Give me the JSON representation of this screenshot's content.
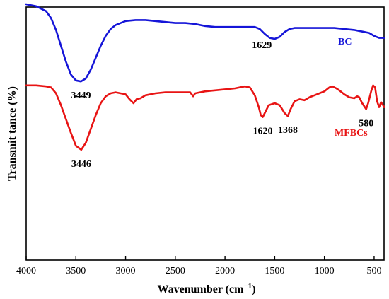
{
  "chart_data": {
    "type": "line",
    "xlabel": "Wavenumber (cm",
    "xlabel_sup": "−1",
    "xlabel_close": ")",
    "ylabel": "Transmit tance (%)",
    "xlim": [
      4000,
      400
    ],
    "x_reversed": true,
    "x_ticks": [
      "4000",
      "3500",
      "3000",
      "2500",
      "2000",
      "1500",
      "1000",
      "500"
    ],
    "y_ticks_shown": false,
    "grid": false,
    "series": [
      {
        "name": "BC",
        "color": "#1515d8",
        "points": [
          [
            4000,
            90
          ],
          [
            3900,
            88
          ],
          [
            3800,
            83
          ],
          [
            3750,
            76
          ],
          [
            3700,
            64
          ],
          [
            3650,
            48
          ],
          [
            3600,
            32
          ],
          [
            3550,
            19
          ],
          [
            3500,
            13
          ],
          [
            3449,
            12
          ],
          [
            3400,
            15
          ],
          [
            3350,
            24
          ],
          [
            3300,
            36
          ],
          [
            3250,
            48
          ],
          [
            3200,
            58
          ],
          [
            3150,
            65
          ],
          [
            3100,
            69
          ],
          [
            3000,
            73
          ],
          [
            2900,
            74
          ],
          [
            2800,
            74
          ],
          [
            2700,
            73
          ],
          [
            2600,
            72
          ],
          [
            2500,
            71
          ],
          [
            2400,
            71
          ],
          [
            2300,
            70
          ],
          [
            2200,
            68
          ],
          [
            2100,
            67
          ],
          [
            2000,
            67
          ],
          [
            1900,
            67
          ],
          [
            1800,
            67
          ],
          [
            1700,
            67
          ],
          [
            1650,
            65
          ],
          [
            1600,
            60
          ],
          [
            1550,
            56
          ],
          [
            1500,
            55
          ],
          [
            1450,
            57
          ],
          [
            1400,
            62
          ],
          [
            1350,
            65
          ],
          [
            1300,
            66
          ],
          [
            1200,
            66
          ],
          [
            1100,
            66
          ],
          [
            1000,
            66
          ],
          [
            900,
            66
          ],
          [
            800,
            65
          ],
          [
            700,
            64
          ],
          [
            650,
            63
          ],
          [
            600,
            62
          ],
          [
            550,
            61
          ],
          [
            500,
            58
          ],
          [
            450,
            56
          ],
          [
            400,
            56
          ]
        ]
      },
      {
        "name": "MFBCs",
        "color": "#e81414",
        "points": [
          [
            4000,
            8
          ],
          [
            3900,
            8
          ],
          [
            3800,
            7
          ],
          [
            3750,
            6
          ],
          [
            3700,
            0
          ],
          [
            3650,
            -12
          ],
          [
            3600,
            -26
          ],
          [
            3550,
            -40
          ],
          [
            3500,
            -53
          ],
          [
            3446,
            -57
          ],
          [
            3400,
            -50
          ],
          [
            3350,
            -36
          ],
          [
            3300,
            -22
          ],
          [
            3250,
            -10
          ],
          [
            3200,
            -3
          ],
          [
            3150,
            0
          ],
          [
            3100,
            1
          ],
          [
            3050,
            0
          ],
          [
            3000,
            -1
          ],
          [
            2960,
            -6
          ],
          [
            2920,
            -10
          ],
          [
            2890,
            -6
          ],
          [
            2850,
            -5
          ],
          [
            2800,
            -2
          ],
          [
            2700,
            0
          ],
          [
            2600,
            1
          ],
          [
            2500,
            1
          ],
          [
            2400,
            1
          ],
          [
            2350,
            1
          ],
          [
            2320,
            -3
          ],
          [
            2300,
            0
          ],
          [
            2200,
            2
          ],
          [
            2100,
            3
          ],
          [
            2000,
            4
          ],
          [
            1900,
            5
          ],
          [
            1800,
            7
          ],
          [
            1750,
            6
          ],
          [
            1700,
            -2
          ],
          [
            1660,
            -14
          ],
          [
            1640,
            -22
          ],
          [
            1620,
            -24
          ],
          [
            1600,
            -20
          ],
          [
            1560,
            -12
          ],
          [
            1500,
            -10
          ],
          [
            1450,
            -12
          ],
          [
            1400,
            -20
          ],
          [
            1368,
            -23
          ],
          [
            1340,
            -16
          ],
          [
            1300,
            -8
          ],
          [
            1250,
            -6
          ],
          [
            1200,
            -7
          ],
          [
            1150,
            -4
          ],
          [
            1100,
            -2
          ],
          [
            1050,
            0
          ],
          [
            1000,
            2
          ],
          [
            950,
            6
          ],
          [
            920,
            7
          ],
          [
            880,
            5
          ],
          [
            850,
            3
          ],
          [
            800,
            -1
          ],
          [
            750,
            -4
          ],
          [
            700,
            -5
          ],
          [
            670,
            -3
          ],
          [
            650,
            -4
          ],
          [
            620,
            -10
          ],
          [
            580,
            -16
          ],
          [
            560,
            -10
          ],
          [
            530,
            2
          ],
          [
            510,
            8
          ],
          [
            490,
            6
          ],
          [
            470,
            -8
          ],
          [
            450,
            -14
          ],
          [
            430,
            -9
          ],
          [
            410,
            -12
          ],
          [
            400,
            -14
          ]
        ]
      }
    ],
    "annotations": [
      {
        "text": "3449",
        "x": 3449,
        "series": 0
      },
      {
        "text": "1629",
        "x": 1629,
        "series": 0
      },
      {
        "text": "3446",
        "x": 3446,
        "series": 1
      },
      {
        "text": "1620",
        "x": 1620,
        "series": 1
      },
      {
        "text": "1368",
        "x": 1368,
        "series": 1
      },
      {
        "text": "580",
        "x": 580,
        "series": 1
      }
    ]
  }
}
